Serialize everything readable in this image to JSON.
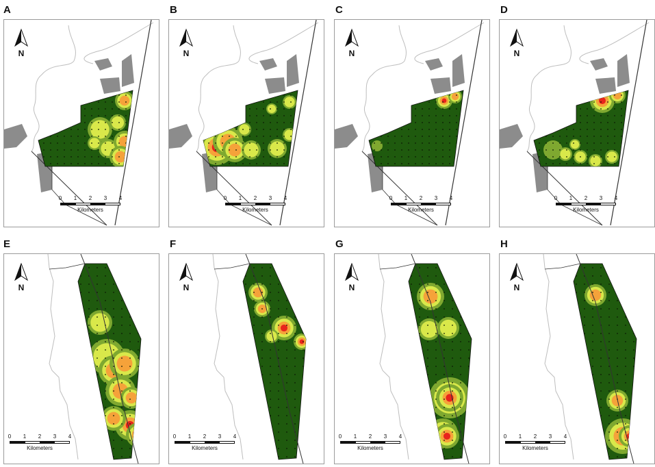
{
  "figure": {
    "panels": [
      {
        "id": "A",
        "label": "A"
      },
      {
        "id": "B",
        "label": "B"
      },
      {
        "id": "C",
        "label": "C"
      },
      {
        "id": "D",
        "label": "D"
      },
      {
        "id": "E",
        "label": "E"
      },
      {
        "id": "F",
        "label": "F"
      },
      {
        "id": "G",
        "label": "G"
      },
      {
        "id": "H",
        "label": "H"
      }
    ],
    "north_label": "N",
    "scale_ticks": [
      "0",
      "1",
      "2",
      "3",
      "4"
    ],
    "scale_unit": "Kilometers",
    "colors": {
      "study_area": "#1f5a0e",
      "low_density": "#7fa830",
      "mid_density": "#d9e84a",
      "high_density": "#f5a23a",
      "peak_density": "#e8241c",
      "urban": "#8c8c8c",
      "coastline": "#bdbdbd",
      "roads": "#333333"
    }
  }
}
